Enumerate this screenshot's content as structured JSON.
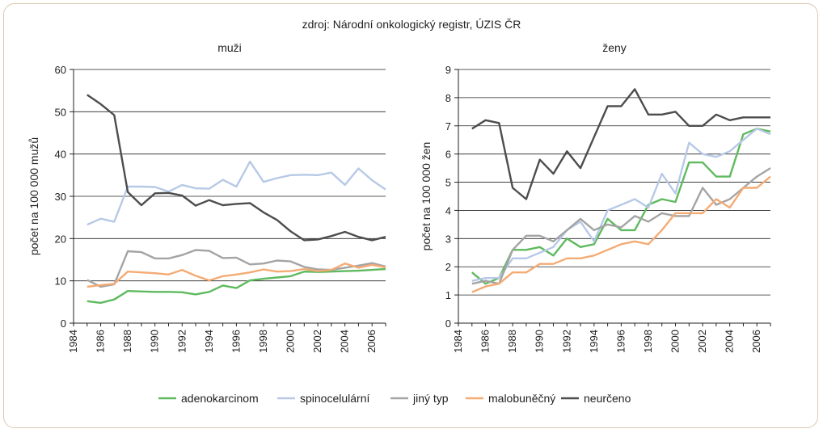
{
  "source": "zdroj: Národní onkologický registr, ÚZIS ČR",
  "chart_data": [
    {
      "type": "line",
      "title": "muži",
      "xlabel": "",
      "ylabel": "počet na 100 000 mužů",
      "xlim": [
        1984,
        2007
      ],
      "xticks": [
        1984,
        1986,
        1988,
        1990,
        1992,
        1994,
        1996,
        1998,
        2000,
        2002,
        2004,
        2006
      ],
      "xtick_labels": [
        "1984",
        "1986",
        "1988",
        "1990",
        "1992",
        "1994",
        "1996",
        "1998",
        "2000",
        "2002",
        "2004",
        "2006"
      ],
      "ylim": [
        0,
        60
      ],
      "yticks": [
        0,
        10,
        20,
        30,
        40,
        50,
        60
      ],
      "ytick_labels": [
        "0",
        "10",
        "20",
        "30",
        "40",
        "50",
        "60"
      ],
      "grid": true,
      "x": [
        1985,
        1986,
        1987,
        1988,
        1989,
        1990,
        1991,
        1992,
        1993,
        1994,
        1995,
        1996,
        1997,
        1998,
        1999,
        2000,
        2001,
        2002,
        2003,
        2004,
        2005,
        2006,
        2007
      ],
      "series": [
        {
          "name": "adenokarcinom",
          "color": "#5fba5f",
          "values": [
            5.2,
            4.8,
            5.6,
            7.6,
            7.5,
            7.4,
            7.4,
            7.3,
            6.8,
            7.4,
            8.9,
            8.3,
            10.1,
            10.5,
            10.8,
            11.1,
            12.2,
            12.1,
            12.2,
            12.3,
            12.4,
            12.6,
            12.8
          ]
        },
        {
          "name": "spinocelulární",
          "color": "#b7c9e6",
          "values": [
            23.3,
            24.7,
            24.0,
            32.3,
            32.3,
            32.2,
            31.1,
            32.7,
            31.9,
            31.8,
            33.9,
            32.3,
            38.2,
            33.4,
            34.3,
            35.0,
            35.1,
            35.0,
            35.6,
            32.7,
            36.6,
            33.8,
            31.6
          ]
        },
        {
          "name": "jiný typ",
          "color": "#a4a4a4",
          "values": [
            10.2,
            8.6,
            9.2,
            17.0,
            16.8,
            15.3,
            15.3,
            16.1,
            17.3,
            17.1,
            15.4,
            15.5,
            13.9,
            14.1,
            14.8,
            14.6,
            13.3,
            12.7,
            12.6,
            13.1,
            13.6,
            14.2,
            13.4
          ]
        },
        {
          "name": "malobuněčný",
          "color": "#f4ab74",
          "values": [
            8.6,
            9.0,
            9.3,
            12.2,
            12.0,
            11.8,
            11.5,
            12.6,
            11.2,
            10.1,
            11.1,
            11.5,
            12.0,
            12.7,
            12.2,
            12.3,
            12.8,
            12.3,
            12.6,
            14.1,
            13.1,
            13.8,
            13.2
          ]
        },
        {
          "name": "neurčeno",
          "color": "#4d4d4d",
          "values": [
            54.0,
            51.8,
            49.2,
            31.0,
            27.9,
            30.7,
            30.8,
            30.2,
            27.8,
            29.1,
            27.9,
            28.2,
            28.4,
            26.2,
            24.4,
            21.7,
            19.6,
            19.8,
            20.6,
            21.6,
            20.4,
            19.6,
            20.4
          ]
        }
      ]
    },
    {
      "type": "line",
      "title": "ženy",
      "xlabel": "",
      "ylabel": "počet na 100 000 žen",
      "xlim": [
        1984,
        2007
      ],
      "xticks": [
        1984,
        1986,
        1988,
        1990,
        1992,
        1994,
        1996,
        1998,
        2000,
        2002,
        2004,
        2006
      ],
      "xtick_labels": [
        "1984",
        "1986",
        "1988",
        "1990",
        "1992",
        "1994",
        "1996",
        "1998",
        "2000",
        "2002",
        "2004",
        "2006"
      ],
      "ylim": [
        0,
        9
      ],
      "yticks": [
        0,
        1,
        2,
        3,
        4,
        5,
        6,
        7,
        8,
        9
      ],
      "ytick_labels": [
        "0",
        "1",
        "2",
        "3",
        "4",
        "5",
        "6",
        "7",
        "8",
        "9"
      ],
      "grid": true,
      "x": [
        1985,
        1986,
        1987,
        1988,
        1989,
        1990,
        1991,
        1992,
        1993,
        1994,
        1995,
        1996,
        1997,
        1998,
        1999,
        2000,
        2001,
        2002,
        2003,
        2004,
        2005,
        2006,
        2007
      ],
      "series": [
        {
          "name": "adenokarcinom",
          "color": "#5fba5f",
          "values": [
            1.8,
            1.4,
            1.6,
            2.6,
            2.6,
            2.7,
            2.4,
            3.0,
            2.7,
            2.8,
            3.7,
            3.3,
            3.3,
            4.2,
            4.4,
            4.3,
            5.7,
            5.7,
            5.2,
            5.2,
            6.7,
            6.9,
            6.8
          ]
        },
        {
          "name": "spinocelulární",
          "color": "#b7c9e6",
          "values": [
            1.5,
            1.6,
            1.6,
            2.3,
            2.3,
            2.5,
            2.7,
            3.3,
            3.6,
            2.9,
            4.0,
            4.2,
            4.4,
            4.1,
            5.3,
            4.6,
            6.4,
            6.0,
            5.9,
            6.1,
            6.5,
            6.9,
            6.7
          ]
        },
        {
          "name": "jiný typ",
          "color": "#a4a4a4",
          "values": [
            1.4,
            1.5,
            1.4,
            2.6,
            3.1,
            3.1,
            2.9,
            3.3,
            3.7,
            3.3,
            3.5,
            3.4,
            3.8,
            3.6,
            3.9,
            3.8,
            3.8,
            4.8,
            4.2,
            4.4,
            4.8,
            5.2,
            5.5
          ]
        },
        {
          "name": "malobuněčný",
          "color": "#f4ab74",
          "values": [
            1.1,
            1.3,
            1.4,
            1.8,
            1.8,
            2.1,
            2.1,
            2.3,
            2.3,
            2.4,
            2.6,
            2.8,
            2.9,
            2.8,
            3.3,
            3.9,
            3.9,
            3.9,
            4.4,
            4.1,
            4.8,
            4.8,
            5.2
          ]
        },
        {
          "name": "neurčeno",
          "color": "#4d4d4d",
          "values": [
            6.9,
            7.2,
            7.1,
            4.8,
            4.4,
            5.8,
            5.3,
            6.1,
            5.5,
            6.6,
            7.7,
            7.7,
            8.3,
            7.4,
            7.4,
            7.5,
            7.0,
            7.0,
            7.4,
            7.2,
            7.3,
            7.3,
            7.3
          ]
        }
      ]
    }
  ],
  "legend": [
    {
      "label": "adenokarcinom",
      "color": "#5fba5f"
    },
    {
      "label": "spinocelulární",
      "color": "#b7c9e6"
    },
    {
      "label": "jiný typ",
      "color": "#a4a4a4"
    },
    {
      "label": "malobuněčný",
      "color": "#f4ab74"
    },
    {
      "label": "neurčeno",
      "color": "#4d4d4d"
    }
  ]
}
